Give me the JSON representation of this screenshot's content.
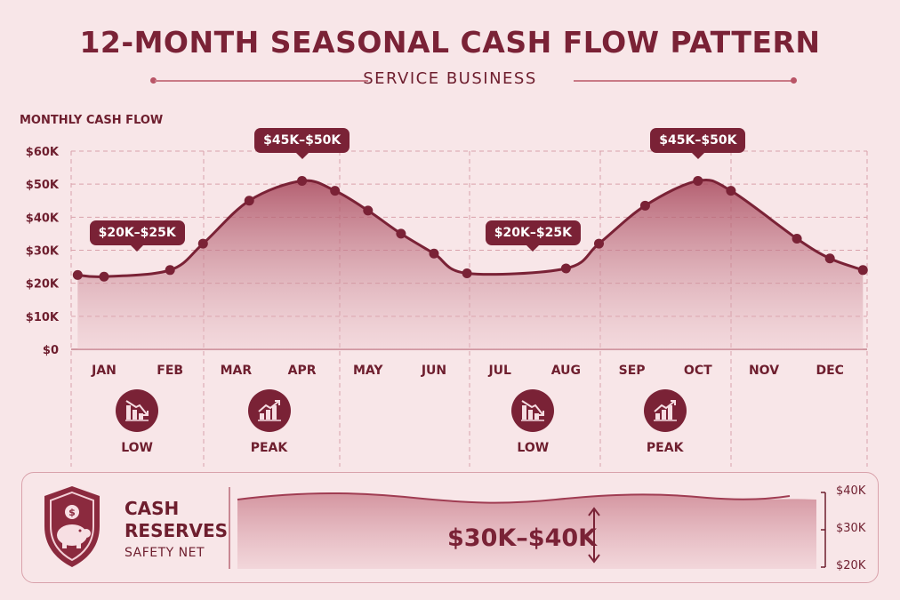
{
  "title": "12-MONTH SEASONAL CASH FLOW PATTERN",
  "subtitle": "SERVICE BUSINESS",
  "y_axis_title": "MONTHLY CASH FLOW",
  "colors": {
    "accent": "#7a2236",
    "background": "#f8e6e8",
    "fill": "#c06878",
    "grid": "#d9a2ab"
  },
  "chart_data": {
    "type": "area",
    "title": "12-MONTH SEASONAL CASH FLOW PATTERN",
    "subtitle": "SERVICE BUSINESS",
    "ylabel": "MONTHLY CASH FLOW",
    "xlabel": "",
    "ylim": [
      0,
      60000
    ],
    "yticks": [
      0,
      10000,
      20000,
      30000,
      40000,
      50000,
      60000
    ],
    "ytick_labels": [
      "$0",
      "$10K",
      "$20K",
      "$30K",
      "$40K",
      "$50K",
      "$60K"
    ],
    "categories": [
      "JAN",
      "FEB",
      "MAR",
      "APR",
      "MAY",
      "JUN",
      "JUL",
      "AUG",
      "SEP",
      "OCT",
      "NOV",
      "DEC"
    ],
    "points": [
      {
        "x": 0.0,
        "y": 22000
      },
      {
        "x": 1.0,
        "y": 24000
      },
      {
        "x": 1.5,
        "y": 32000
      },
      {
        "x": 2.2,
        "y": 45000
      },
      {
        "x": 3.0,
        "y": 51000
      },
      {
        "x": 3.5,
        "y": 48000
      },
      {
        "x": 4.0,
        "y": 42000
      },
      {
        "x": 4.5,
        "y": 35000
      },
      {
        "x": 5.0,
        "y": 29000
      },
      {
        "x": 5.5,
        "y": 23000
      },
      {
        "x": 7.0,
        "y": 24500
      },
      {
        "x": 7.5,
        "y": 32000
      },
      {
        "x": 8.2,
        "y": 43500
      },
      {
        "x": 9.0,
        "y": 51000
      },
      {
        "x": 9.5,
        "y": 48000
      },
      {
        "x": 10.5,
        "y": 33500
      },
      {
        "x": 11.0,
        "y": 27500
      },
      {
        "x": 11.5,
        "y": 24000
      }
    ],
    "curve_start": {
      "x": -0.4,
      "y": 22500
    },
    "grid": true,
    "annotations": [
      {
        "text": "$20K–$25K",
        "x": 0.5,
        "y": 23000
      },
      {
        "text": "$45K–$50K",
        "x": 3.0,
        "y": 51000
      },
      {
        "text": "$20K–$25K",
        "x": 6.5,
        "y": 23000
      },
      {
        "text": "$45K–$50K",
        "x": 9.0,
        "y": 51000
      }
    ]
  },
  "seasons": [
    {
      "label": "LOW",
      "icon": "trend-down-icon"
    },
    {
      "label": "PEAK",
      "icon": "trend-up-icon"
    },
    {
      "label": "LOW",
      "icon": "trend-down-icon"
    },
    {
      "label": "PEAK",
      "icon": "trend-up-icon"
    }
  ],
  "reserves": {
    "title_line1": "CASH",
    "title_line2": "RESERVES",
    "subtitle": "SAFETY NET",
    "range": "$30K–$40K",
    "ticks": [
      "$40K",
      "$30K",
      "$20K"
    ],
    "icon": "piggy-bank-shield-icon"
  }
}
